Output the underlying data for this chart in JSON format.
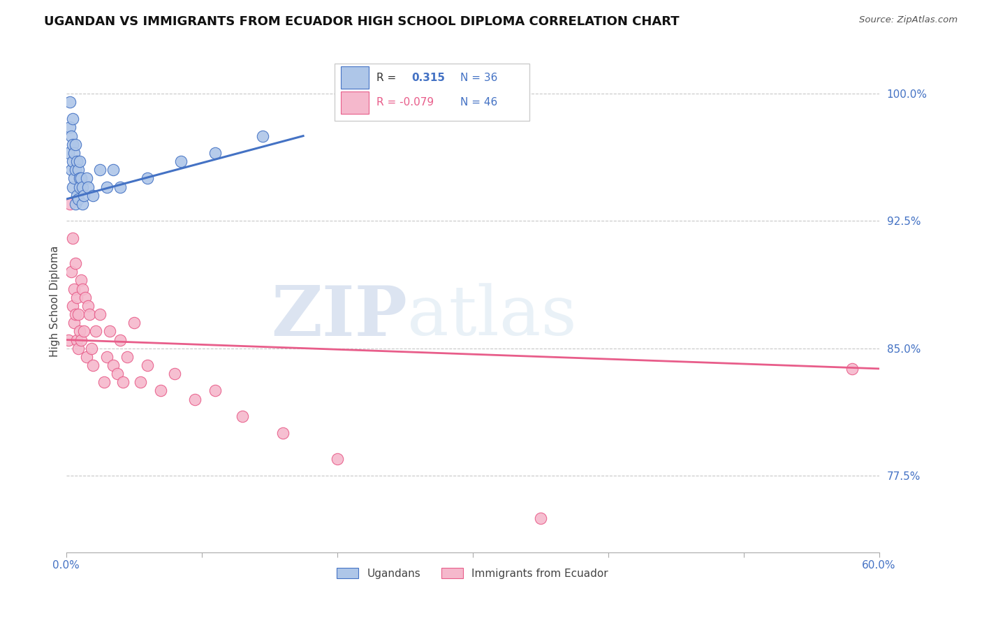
{
  "title": "UGANDAN VS IMMIGRANTS FROM ECUADOR HIGH SCHOOL DIPLOMA CORRELATION CHART",
  "source": "Source: ZipAtlas.com",
  "ylabel": "High School Diploma",
  "legend_label_ugandans": "Ugandans",
  "legend_label_ecuador": "Immigrants from Ecuador",
  "xmin": 0.0,
  "xmax": 0.6,
  "ymin": 73.0,
  "ymax": 102.5,
  "yticks": [
    77.5,
    85.0,
    92.5,
    100.0
  ],
  "ytick_labels": [
    "77.5%",
    "85.0%",
    "92.5%",
    "100.0%"
  ],
  "xtick_positions": [
    0.0,
    0.1,
    0.2,
    0.3,
    0.4,
    0.5,
    0.6
  ],
  "xtick_labels": [
    "0.0%",
    "",
    "",
    "",
    "",
    "",
    "60.0%"
  ],
  "blue_scatter_x": [
    0.002,
    0.003,
    0.003,
    0.004,
    0.004,
    0.005,
    0.005,
    0.005,
    0.005,
    0.006,
    0.006,
    0.007,
    0.007,
    0.007,
    0.008,
    0.008,
    0.009,
    0.009,
    0.01,
    0.01,
    0.01,
    0.011,
    0.012,
    0.012,
    0.013,
    0.015,
    0.016,
    0.02,
    0.025,
    0.03,
    0.035,
    0.04,
    0.06,
    0.085,
    0.11,
    0.145
  ],
  "blue_scatter_y": [
    96.5,
    98.0,
    99.5,
    97.5,
    95.5,
    97.0,
    96.0,
    98.5,
    94.5,
    96.5,
    95.0,
    93.5,
    97.0,
    95.5,
    94.0,
    96.0,
    95.5,
    93.8,
    95.0,
    94.5,
    96.0,
    95.0,
    94.5,
    93.5,
    94.0,
    95.0,
    94.5,
    94.0,
    95.5,
    94.5,
    95.5,
    94.5,
    95.0,
    96.0,
    96.5,
    97.5
  ],
  "pink_scatter_x": [
    0.002,
    0.003,
    0.004,
    0.005,
    0.005,
    0.006,
    0.006,
    0.007,
    0.007,
    0.008,
    0.008,
    0.009,
    0.009,
    0.01,
    0.011,
    0.011,
    0.012,
    0.013,
    0.014,
    0.015,
    0.016,
    0.017,
    0.019,
    0.02,
    0.022,
    0.025,
    0.028,
    0.03,
    0.032,
    0.035,
    0.038,
    0.04,
    0.042,
    0.045,
    0.05,
    0.055,
    0.06,
    0.07,
    0.08,
    0.095,
    0.11,
    0.13,
    0.16,
    0.2,
    0.35,
    0.58
  ],
  "pink_scatter_y": [
    85.5,
    93.5,
    89.5,
    91.5,
    87.5,
    86.5,
    88.5,
    87.0,
    90.0,
    85.5,
    88.0,
    85.0,
    87.0,
    86.0,
    89.0,
    85.5,
    88.5,
    86.0,
    88.0,
    84.5,
    87.5,
    87.0,
    85.0,
    84.0,
    86.0,
    87.0,
    83.0,
    84.5,
    86.0,
    84.0,
    83.5,
    85.5,
    83.0,
    84.5,
    86.5,
    83.0,
    84.0,
    82.5,
    83.5,
    82.0,
    82.5,
    81.0,
    80.0,
    78.5,
    75.0,
    83.8
  ],
  "blue_line_x": [
    0.001,
    0.175
  ],
  "blue_line_y": [
    93.8,
    97.5
  ],
  "pink_line_x": [
    0.0,
    0.6
  ],
  "pink_line_y": [
    85.5,
    83.8
  ],
  "blue_color": "#4472c4",
  "pink_color": "#e85d8a",
  "blue_scatter_color": "#aec6e8",
  "pink_scatter_color": "#f5b8cc",
  "grid_color": "#c8c8c8",
  "background_color": "#ffffff",
  "watermark_zip": "ZIP",
  "watermark_atlas": "atlas",
  "title_fontsize": 13,
  "axis_label_fontsize": 11,
  "tick_fontsize": 11,
  "r_blue": "R =",
  "r_blue_val": "0.315",
  "n_blue": "N = 36",
  "r_pink": "R = -0.079",
  "n_pink": "N = 46"
}
